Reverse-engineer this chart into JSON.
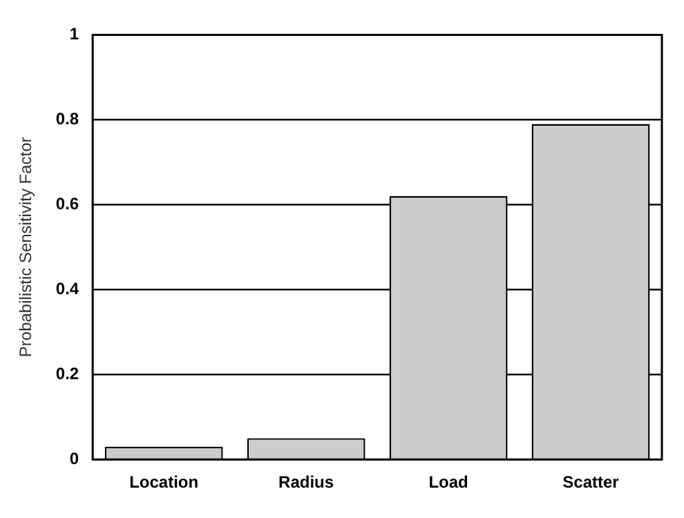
{
  "chart_data": {
    "type": "bar",
    "ylabel": "Probabilistic Sensitivity Factor",
    "categories": [
      "Location",
      "Radius",
      "Load",
      "Scatter"
    ],
    "values": [
      0.03,
      0.05,
      0.62,
      0.79
    ],
    "color": "#cccccc",
    "ylim": [
      0,
      1
    ],
    "yticks": [
      0,
      0.2,
      0.4,
      0.6,
      0.8,
      1
    ],
    "grid": "y",
    "legend": false
  }
}
